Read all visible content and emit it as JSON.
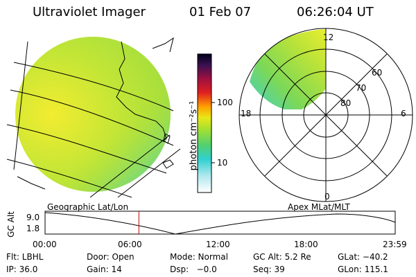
{
  "header": {
    "instrument": "Ultraviolet Imager",
    "date": "01 Feb 07",
    "time": "06:26:04 UT"
  },
  "colorbar": {
    "unit_label": "photon cm⁻²s⁻¹",
    "ticks": [
      "100",
      "10"
    ]
  },
  "panels": {
    "left_caption": "Geographic Lat/Lon",
    "right_caption": "Apex MLat/MLT"
  },
  "polar_plot": {
    "mlt_labels": [
      "12",
      "18",
      "6",
      "0"
    ],
    "mlat_labels": [
      "60",
      "70",
      "80"
    ]
  },
  "timeline": {
    "ylabel": "GC Alt",
    "y_ticks": [
      "9.0",
      "1.8"
    ],
    "x_ticks": [
      "00:00",
      "06:00",
      "12:00",
      "18:00",
      "23:59"
    ],
    "current_time_fraction": 0.268
  },
  "info": {
    "row1": {
      "flt": "Flt: LBHL",
      "door": "Door: Open",
      "mode": "Mode: Normal",
      "gc_alt": "GC Alt: 5.2 Re",
      "glat": "GLat: −40.2"
    },
    "row2": {
      "ip": "IP: 36.0",
      "gain": "Gain: 14",
      "dsp": "Dsp:   −0.0",
      "seq": "Seq: 39",
      "glon": "GLon: 115.1"
    }
  },
  "colors": {
    "disk_main": "#b8e23a",
    "disk_bright": "#e8ee30",
    "disk_cyan": "#3fd0c8",
    "marker": "#c00000"
  }
}
